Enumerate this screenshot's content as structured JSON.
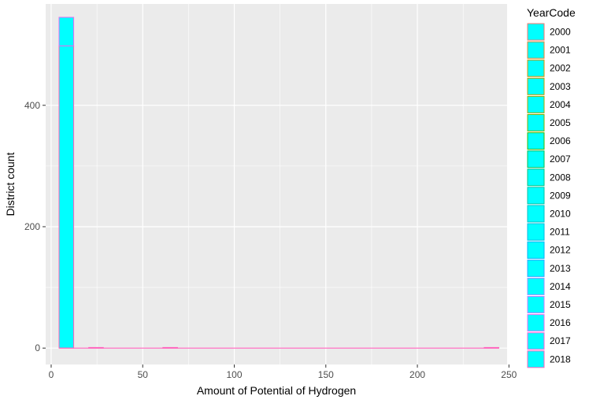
{
  "chart_data": {
    "type": "bar",
    "subtype": "stacked-histogram",
    "xlabel": "Amount of Potential of Hydrogen",
    "ylabel": "District count",
    "xlim": [
      -3,
      249
    ],
    "ylim": [
      -27,
      567
    ],
    "x_ticks": [
      0,
      50,
      100,
      150,
      200,
      250
    ],
    "y_ticks": [
      0,
      200,
      400
    ],
    "grid": true,
    "legend": {
      "title": "YearCode",
      "placement": "right",
      "fill_color": "#00FFFF",
      "entries": [
        {
          "label": "2000",
          "color": "#F8766D"
        },
        {
          "label": "2001",
          "color": "#EA8331"
        },
        {
          "label": "2002",
          "color": "#D89000"
        },
        {
          "label": "2003",
          "color": "#C09B00"
        },
        {
          "label": "2004",
          "color": "#A3A500"
        },
        {
          "label": "2005",
          "color": "#7CAE00"
        },
        {
          "label": "2006",
          "color": "#39B600"
        },
        {
          "label": "2007",
          "color": "#00BB4E"
        },
        {
          "label": "2008",
          "color": "#00BF7D"
        },
        {
          "label": "2009",
          "color": "#00C1A3"
        },
        {
          "label": "2010",
          "color": "#00BFC4"
        },
        {
          "label": "2011",
          "color": "#00BAE0"
        },
        {
          "label": "2012",
          "color": "#00B0F6"
        },
        {
          "label": "2013",
          "color": "#35A2FF"
        },
        {
          "label": "2014",
          "color": "#9590FF"
        },
        {
          "label": "2015",
          "color": "#C77CFF"
        },
        {
          "label": "2016",
          "color": "#E76BF3"
        },
        {
          "label": "2017",
          "color": "#FA62DB"
        },
        {
          "label": "2018",
          "color": "#FF62BC"
        }
      ]
    },
    "bins": [
      {
        "x0": 4.3,
        "x1": 12.3,
        "stack_tops": [
          498,
          545
        ]
      },
      {
        "x0": 20.5,
        "x1": 28.5,
        "stack_tops": [
          1
        ]
      },
      {
        "x0": 61.0,
        "x1": 69.0,
        "stack_tops": [
          1
        ]
      },
      {
        "x0": 236.5,
        "x1": 244.5,
        "stack_tops": [
          1
        ]
      }
    ],
    "baseline_range": [
      4.3,
      244.5
    ]
  }
}
